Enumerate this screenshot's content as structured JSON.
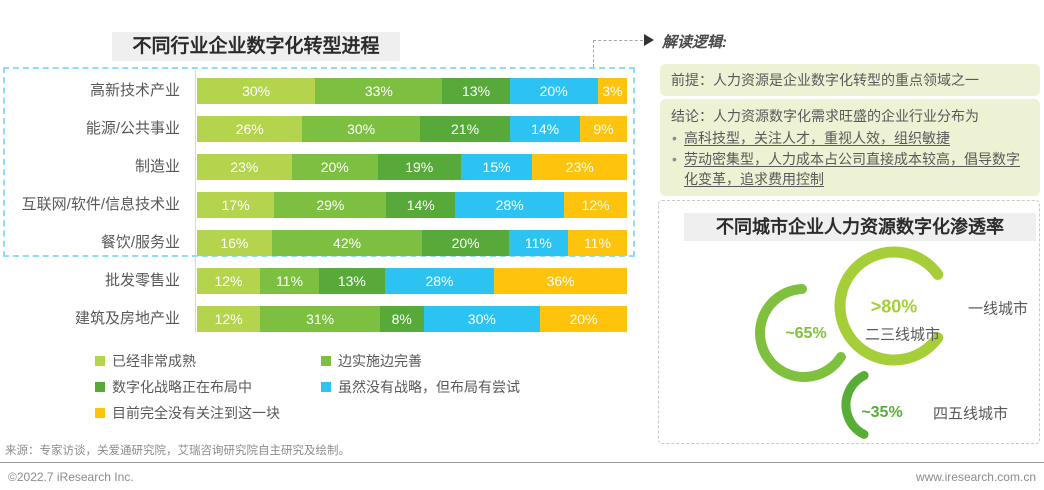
{
  "interpretation": {
    "heading": "解读逻辑:",
    "premise": "前提：人力资源是企业数字化转型的重点领域之一",
    "conclusion_title": "结论：人力资源数字化需求旺盛的企业行业分布为",
    "bullets": [
      "高科技型，关注人才，重视人效，组织敏捷",
      "劳动密集型，人力成本占公司直接成本较高，倡导数字化变革，追求费用控制"
    ]
  },
  "source": "来源：专家访谈，关爱通研究院，艾瑞咨询研究院自主研究及绘制。",
  "footer": {
    "left": "©2022.7 iResearch Inc.",
    "right": "www.iresearch.com.cn"
  },
  "chart_data": [
    {
      "type": "bar",
      "orientation": "horizontal",
      "stacked": true,
      "unit": "%",
      "xlim": [
        0,
        100
      ],
      "grid": false,
      "legend_position": "bottom",
      "title": "不同行业企业数字化转型进程",
      "categories": [
        "高新技术产业",
        "能源/公共事业",
        "制造业",
        "互联网/软件/信息技术业",
        "餐饮/服务业",
        "批发零售业",
        "建筑及房地产业"
      ],
      "series": [
        {
          "name": "已经非常成熟",
          "color": "#b5d44e",
          "values": [
            30,
            26,
            23,
            17,
            16,
            12,
            12
          ]
        },
        {
          "name": "边实施边完善",
          "color": "#7dbf41",
          "values": [
            33,
            30,
            20,
            29,
            42,
            11,
            31
          ]
        },
        {
          "name": "数字化战略正在布局中",
          "color": "#57a93a",
          "values": [
            13,
            21,
            19,
            14,
            20,
            13,
            8
          ]
        },
        {
          "name": "虽然没有战略，但布局有尝试",
          "color": "#2cc3f2",
          "values": [
            20,
            14,
            15,
            28,
            11,
            28,
            30
          ]
        },
        {
          "name": "目前完全没有关注到这一块",
          "color": "#fdc30d",
          "values": [
            3,
            9,
            23,
            12,
            11,
            36,
            20
          ]
        }
      ],
      "annotations": {
        "highlight_box_rows": [
          "高新技术产业",
          "能源/公共事业",
          "制造业",
          "互联网/软件/信息技术业",
          "餐饮/服务业"
        ],
        "highlight_box_color": "#8edcf8"
      }
    },
    {
      "type": "pie",
      "subtype": "donut-arc",
      "title": "不同城市企业人力资源数字化渗透率",
      "categories": [
        "一线城市",
        "二三线城市",
        "四五线城市"
      ],
      "values": [
        ">80%",
        "~65%",
        "~35%"
      ],
      "numeric_values": [
        80,
        65,
        35
      ],
      "colors": [
        "#a6ce39",
        "#7fc13e",
        "#57ad35"
      ],
      "legend_position": "none"
    }
  ]
}
